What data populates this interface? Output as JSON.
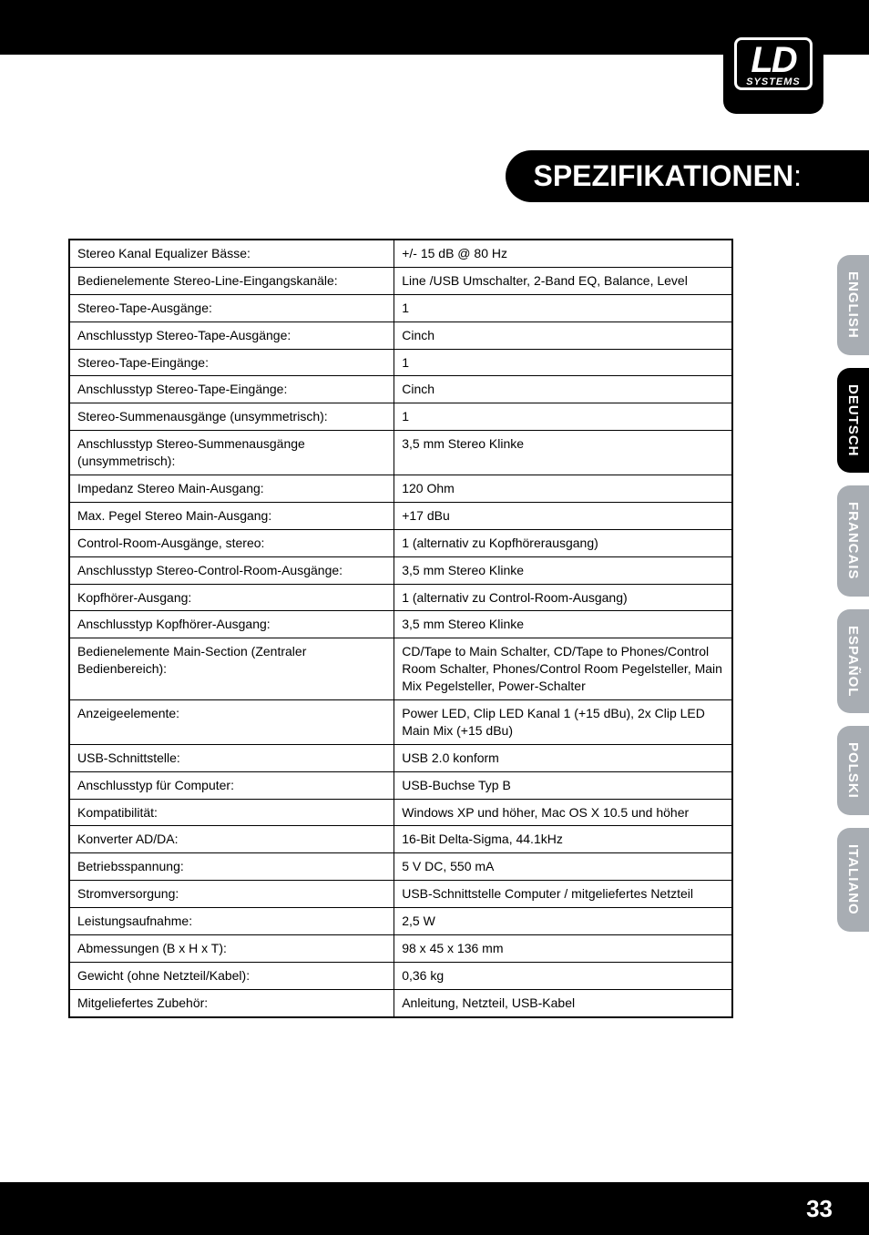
{
  "logo": {
    "main": "LD",
    "sub": "SYSTEMS"
  },
  "title": "SPEZIFIKATIONEN",
  "rows": [
    [
      "Stereo Kanal Equalizer Bässe:",
      "+/- 15 dB @ 80 Hz"
    ],
    [
      "Bedienelemente Stereo-Line-Eingangskanäle:",
      "Line /USB Umschalter, 2-Band EQ, Balance, Level"
    ],
    [
      "Stereo-Tape-Ausgänge:",
      "1"
    ],
    [
      "Anschlusstyp Stereo-Tape-Ausgänge:",
      "Cinch"
    ],
    [
      "Stereo-Tape-Eingänge:",
      "1"
    ],
    [
      "Anschlusstyp Stereo-Tape-Eingänge:",
      "Cinch"
    ],
    [
      "Stereo-Summenausgänge (unsymmetrisch):",
      "1"
    ],
    [
      "Anschlusstyp Stereo-Summenausgänge (unsymmetrisch):",
      "3,5 mm Stereo Klinke"
    ],
    [
      "Impedanz Stereo Main-Ausgang:",
      "120 Ohm"
    ],
    [
      "Max. Pegel  Stereo Main-Ausgang:",
      "+17 dBu"
    ],
    [
      "Control-Room-Ausgänge, stereo:",
      "1 (alternativ zu Kopfhörerausgang)"
    ],
    [
      "Anschlusstyp Stereo-Control-Room-Ausgänge:",
      "3,5 mm Stereo Klinke"
    ],
    [
      "Kopfhörer-Ausgang:",
      "1 (alternativ zu Control-Room-Ausgang)"
    ],
    [
      "Anschlusstyp Kopfhörer-Ausgang:",
      "3,5 mm Stereo Klinke"
    ],
    [
      "Bedienelemente Main-Section (Zentraler Bedienbereich):",
      "CD/Tape to Main Schalter, CD/Tape to Phones/Control Room Schalter, Phones/Control Room Pegelsteller, Main Mix Pegelsteller, Power-Schalter"
    ],
    [
      "Anzeigeelemente:",
      "Power LED, Clip LED Kanal 1 (+15 dBu), 2x Clip LED Main Mix (+15 dBu)"
    ],
    [
      "USB-Schnittstelle:",
      "USB 2.0 konform"
    ],
    [
      "Anschlusstyp für Computer:",
      "USB-Buchse Typ B"
    ],
    [
      "Kompatibilität:",
      "Windows XP und höher, Mac OS X 10.5 und höher"
    ],
    [
      "Konverter AD/DA:",
      "16-Bit Delta-Sigma, 44.1kHz"
    ],
    [
      "Betriebsspannung:",
      "5 V DC, 550 mA"
    ],
    [
      "Stromversorgung:",
      "USB-Schnittstelle Computer / mitgeliefertes Netzteil"
    ],
    [
      "Leistungsaufnahme:",
      "2,5 W"
    ],
    [
      "Abmessungen (B x H x T):",
      "98 x 45 x 136 mm"
    ],
    [
      "Gewicht (ohne Netzteil/Kabel):",
      "0,36 kg"
    ],
    [
      "Mitgeliefertes Zubehör:",
      "Anleitung, Netzteil, USB-Kabel"
    ]
  ],
  "langs": [
    "ENGLISH",
    "DEUTSCH",
    "FRANCAIS",
    "ESPAÑOL",
    "POLSKI",
    "ITALIANO"
  ],
  "active_lang": 1,
  "page": "33"
}
